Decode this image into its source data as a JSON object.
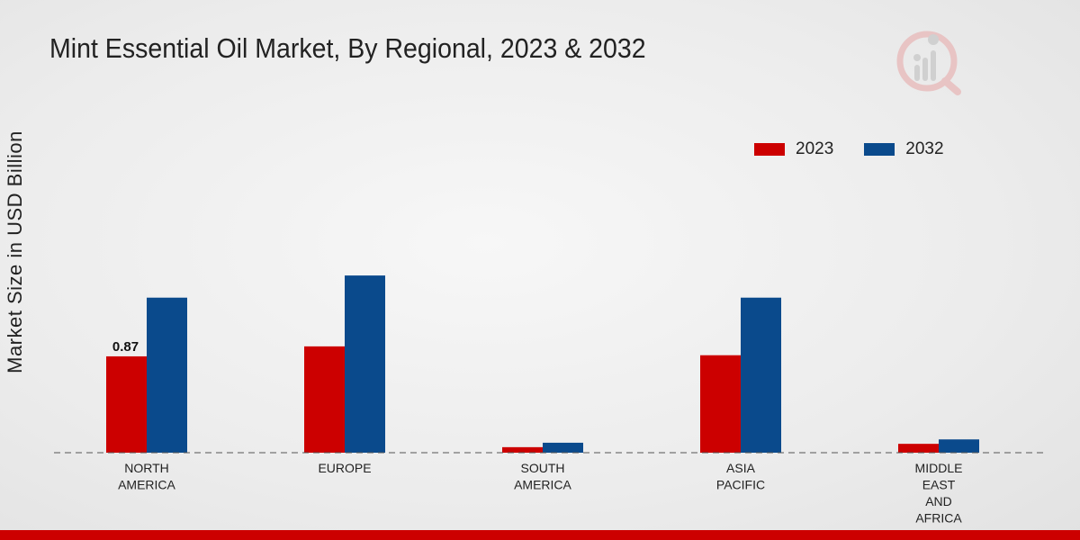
{
  "title": "Mint Essential Oil Market, By Regional, 2023 & 2032",
  "colors": {
    "2023": "#cc0000",
    "2032": "#0a4a8c",
    "accent": "#cc0000"
  },
  "chart_data": {
    "type": "bar",
    "title": "Mint Essential Oil Market, By Regional, 2023 & 2032",
    "xlabel": "",
    "ylabel": "Market Size in USD Billion",
    "categories": [
      [
        "NORTH",
        "AMERICA"
      ],
      [
        "EUROPE"
      ],
      [
        "SOUTH",
        "AMERICA"
      ],
      [
        "ASIA",
        "PACIFIC"
      ],
      [
        "MIDDLE",
        "EAST",
        "AND",
        "AFRICA"
      ]
    ],
    "series": [
      {
        "name": "2023",
        "values": [
          0.87,
          0.96,
          0.05,
          0.88,
          0.08
        ]
      },
      {
        "name": "2032",
        "values": [
          1.4,
          1.6,
          0.09,
          1.4,
          0.12
        ]
      }
    ],
    "data_labels": [
      {
        "series": 0,
        "index": 0,
        "text": "0.87"
      }
    ],
    "ylim": [
      0,
      3.6
    ],
    "grid": false,
    "legend_position": "top-right"
  }
}
